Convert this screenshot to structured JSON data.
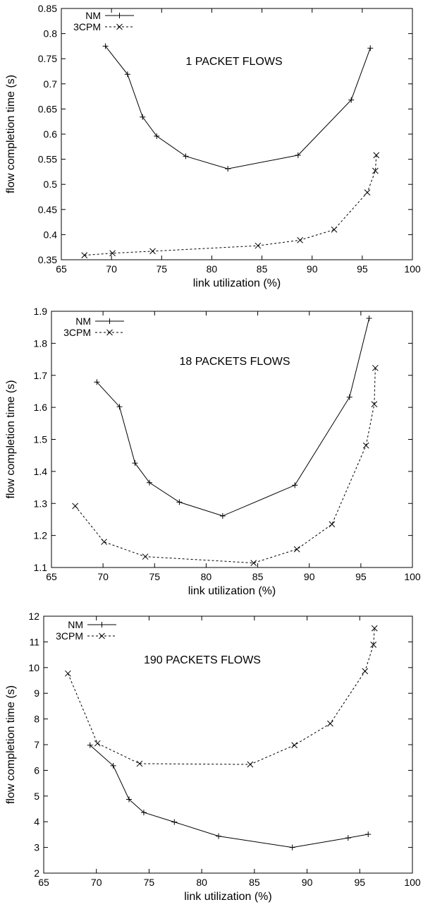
{
  "chart_data": [
    {
      "type": "line",
      "annotation": "1 PACKET FLOWS",
      "xlabel": "link utilization (%)",
      "ylabel": "flow completion time (s)",
      "xlim": [
        65,
        100
      ],
      "ylim": [
        0.35,
        0.85
      ],
      "xticks": [
        65,
        70,
        75,
        80,
        85,
        90,
        95,
        100
      ],
      "yticks": [
        0.35,
        0.4,
        0.45,
        0.5,
        0.55,
        0.6,
        0.65,
        0.7,
        0.75,
        0.8,
        0.85
      ],
      "xtick_labels": [
        "65",
        "70",
        "75",
        "80",
        "85",
        "90",
        "95",
        "100"
      ],
      "ytick_labels": [
        "0.35",
        "0.4",
        "0.45",
        "0.5",
        "0.55",
        "0.6",
        "0.65",
        "0.7",
        "0.75",
        "0.8",
        "0.85"
      ],
      "grid": false,
      "legend": "top-left",
      "series": [
        {
          "name": "NM",
          "marker": "plus",
          "dash": "solid",
          "x": [
            69.4,
            71.6,
            73.1,
            74.5,
            77.4,
            81.6,
            88.6,
            93.9,
            95.8
          ],
          "y": [
            0.775,
            0.719,
            0.634,
            0.596,
            0.556,
            0.531,
            0.558,
            0.668,
            0.771
          ]
        },
        {
          "name": "3CPM",
          "marker": "cross",
          "dash": "dashed",
          "x": [
            67.3,
            70.1,
            74.1,
            84.6,
            88.8,
            92.2,
            95.5,
            96.3,
            96.4
          ],
          "y": [
            0.359,
            0.363,
            0.367,
            0.378,
            0.389,
            0.41,
            0.484,
            0.527,
            0.558
          ]
        }
      ]
    },
    {
      "type": "line",
      "annotation": "18 PACKETS FLOWS",
      "xlabel": "link utilization (%)",
      "ylabel": "flow completion time (s)",
      "xlim": [
        65,
        100
      ],
      "ylim": [
        1.1,
        1.9
      ],
      "xticks": [
        65,
        70,
        75,
        80,
        85,
        90,
        95,
        100
      ],
      "yticks": [
        1.1,
        1.2,
        1.3,
        1.4,
        1.5,
        1.6,
        1.7,
        1.8,
        1.9
      ],
      "xtick_labels": [
        "65",
        "70",
        "75",
        "80",
        "85",
        "90",
        "95",
        "100"
      ],
      "ytick_labels": [
        "1.1",
        "1.2",
        "1.3",
        "1.4",
        "1.5",
        "1.6",
        "1.7",
        "1.8",
        "1.9"
      ],
      "grid": false,
      "legend": "top-left",
      "series": [
        {
          "name": "NM",
          "marker": "plus",
          "dash": "solid",
          "x": [
            69.4,
            71.6,
            73.1,
            74.5,
            77.4,
            81.6,
            88.6,
            93.9,
            95.8
          ],
          "y": [
            1.679,
            1.602,
            1.426,
            1.365,
            1.304,
            1.261,
            1.357,
            1.632,
            1.878
          ]
        },
        {
          "name": "3CPM",
          "marker": "cross",
          "dash": "dashed",
          "x": [
            67.3,
            70.1,
            74.1,
            84.6,
            88.8,
            92.2,
            95.5,
            96.3,
            96.4
          ],
          "y": [
            1.292,
            1.18,
            1.134,
            1.114,
            1.157,
            1.235,
            1.481,
            1.61,
            1.723
          ]
        }
      ]
    },
    {
      "type": "line",
      "annotation": "190 PACKETS FLOWS",
      "xlabel": "link utilization (%)",
      "ylabel": "flow completion time (s)",
      "xlim": [
        65,
        100
      ],
      "ylim": [
        2,
        12
      ],
      "xticks": [
        65,
        70,
        75,
        80,
        85,
        90,
        95,
        100
      ],
      "yticks": [
        2,
        3,
        4,
        5,
        6,
        7,
        8,
        9,
        10,
        11,
        12
      ],
      "xtick_labels": [
        "65",
        "70",
        "75",
        "80",
        "85",
        "90",
        "95",
        "100"
      ],
      "ytick_labels": [
        "2",
        "3",
        "4",
        "5",
        "6",
        "7",
        "8",
        "9",
        "10",
        "11",
        "12"
      ],
      "grid": false,
      "legend": "top-left",
      "series": [
        {
          "name": "NM",
          "marker": "plus",
          "dash": "solid",
          "x": [
            69.4,
            71.6,
            73.1,
            74.5,
            77.4,
            81.6,
            88.6,
            93.9,
            95.8
          ],
          "y": [
            6.98,
            6.18,
            4.87,
            4.36,
            3.99,
            3.44,
            3.0,
            3.37,
            3.51
          ]
        },
        {
          "name": "3CPM",
          "marker": "cross",
          "dash": "dashed",
          "x": [
            67.3,
            70.1,
            74.1,
            84.6,
            88.8,
            92.2,
            95.5,
            96.3,
            96.4
          ],
          "y": [
            9.77,
            7.05,
            6.26,
            6.23,
            6.98,
            7.82,
            9.86,
            10.89,
            11.53
          ]
        }
      ]
    }
  ]
}
